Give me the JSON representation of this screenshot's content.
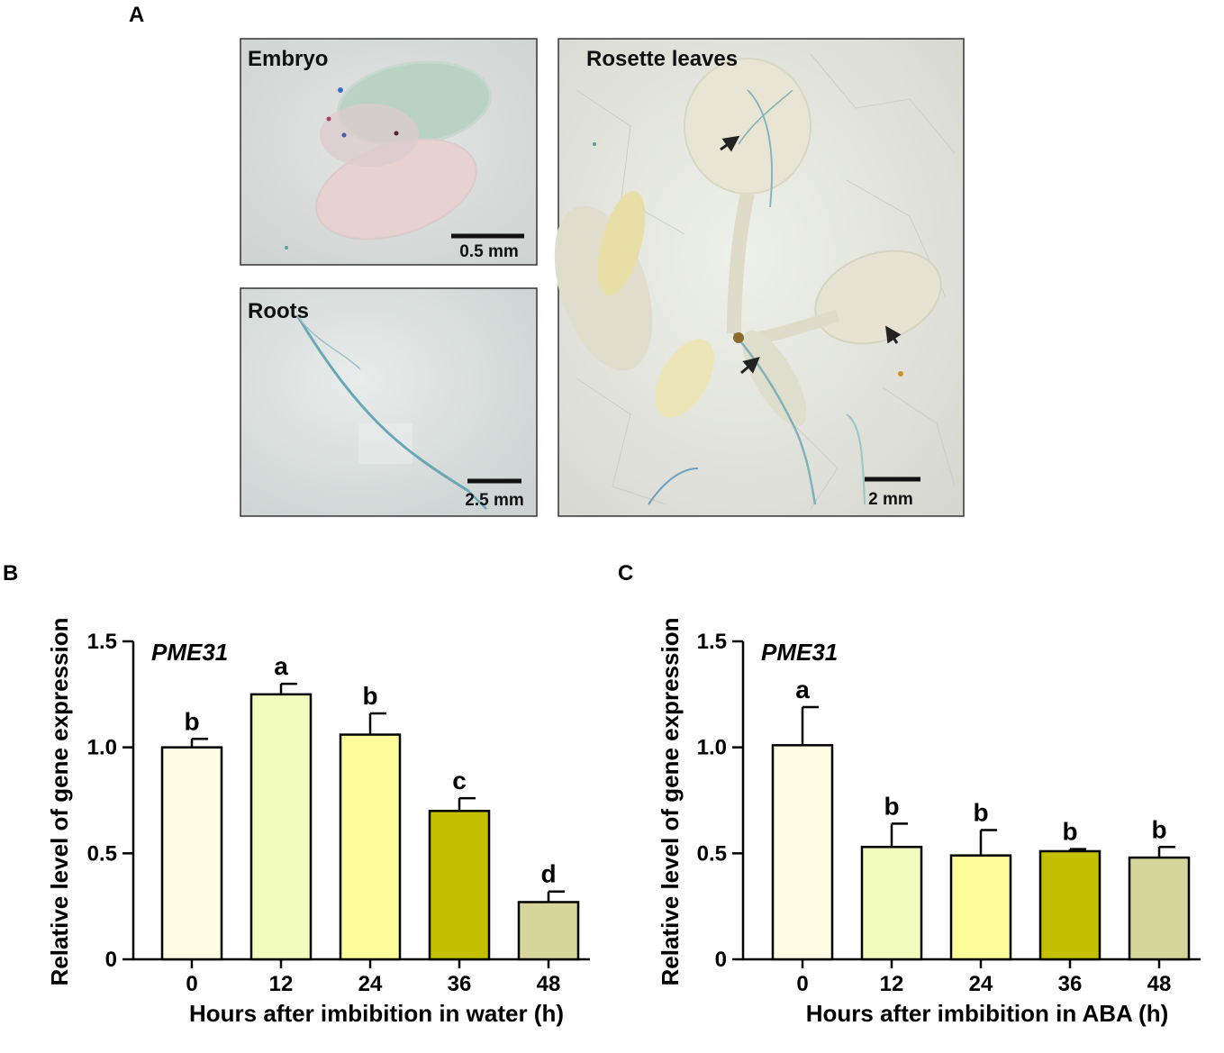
{
  "panels": {
    "a": {
      "letter": "A",
      "images": [
        {
          "title": "Embryo",
          "scale": "0.5 mm"
        },
        {
          "title": "Roots",
          "scale": "2.5 mm"
        },
        {
          "title": "Rosette leaves",
          "scale": "2 mm"
        }
      ]
    }
  },
  "colors": {
    "bar_0": "#fffde3",
    "bar_12": "#f2fcbf",
    "bar_24": "#fdfd9a",
    "bar_36": "#c4c000",
    "bar_48": "#d5d59c"
  },
  "chart_data": [
    {
      "type": "bar",
      "letter": "B",
      "gene": "PME31",
      "categories": [
        "0",
        "12",
        "24",
        "36",
        "48"
      ],
      "values": [
        1.0,
        1.25,
        1.06,
        0.7,
        0.27
      ],
      "errors": [
        0.04,
        0.05,
        0.1,
        0.06,
        0.05
      ],
      "significance": [
        "b",
        "a",
        "b",
        "c",
        "d"
      ],
      "xlabel": "Hours after imbibition in water (h)",
      "ylabel": "Relative level of gene expression",
      "ylim": [
        0,
        1.5
      ],
      "yticks": [
        "0",
        "0.5",
        "1.0",
        "1.5"
      ],
      "ytick_values": [
        0,
        0.5,
        1.0,
        1.5
      ],
      "grid": false
    },
    {
      "type": "bar",
      "letter": "C",
      "gene": "PME31",
      "categories": [
        "0",
        "12",
        "24",
        "36",
        "48"
      ],
      "values": [
        1.01,
        0.53,
        0.49,
        0.51,
        0.48
      ],
      "errors": [
        0.18,
        0.11,
        0.12,
        0.01,
        0.05
      ],
      "significance": [
        "a",
        "b",
        "b",
        "b",
        "b"
      ],
      "xlabel": "Hours after imbibition in ABA (h)",
      "ylabel": "Relative level of gene expression",
      "ylim": [
        0,
        1.5
      ],
      "yticks": [
        "0",
        "0.5",
        "1.0",
        "1.5"
      ],
      "ytick_values": [
        0,
        0.5,
        1.0,
        1.5
      ],
      "grid": false
    }
  ]
}
